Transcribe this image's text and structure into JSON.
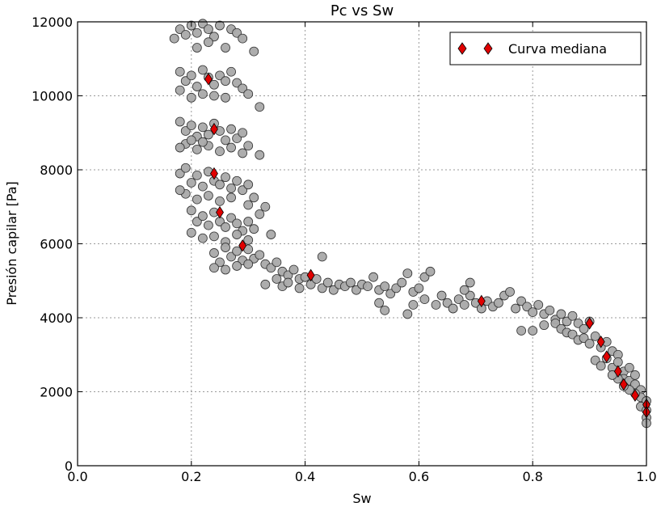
{
  "chart_data": {
    "type": "scatter",
    "title": "Pc vs Sw",
    "xlabel": "Sw",
    "ylabel": "Presión capilar [Pa]",
    "xlim": [
      0.0,
      1.0
    ],
    "ylim": [
      0,
      12000
    ],
    "xticks": [
      "0.0",
      "0.2",
      "0.4",
      "0.6",
      "0.8",
      "1.0"
    ],
    "yticks": [
      "0",
      "2000",
      "4000",
      "6000",
      "8000",
      "10000",
      "12000"
    ],
    "grid": true,
    "legend": {
      "placement": "top-right",
      "entries": [
        "Curva mediana"
      ]
    },
    "colors": {
      "scatter_fill": "#a9a9a9",
      "scatter_edge": "#333333",
      "median_fill": "#e00000",
      "median_edge": "#000000"
    },
    "series": [
      {
        "kind": "scatter",
        "points": [
          [
            0.17,
            11550
          ],
          [
            0.18,
            11800
          ],
          [
            0.19,
            11650
          ],
          [
            0.2,
            11900
          ],
          [
            0.21,
            11700
          ],
          [
            0.22,
            11950
          ],
          [
            0.23,
            11800
          ],
          [
            0.24,
            11600
          ],
          [
            0.25,
            11900
          ],
          [
            0.27,
            11800
          ],
          [
            0.28,
            11700
          ],
          [
            0.29,
            11550
          ],
          [
            0.31,
            11200
          ],
          [
            0.21,
            11300
          ],
          [
            0.23,
            11450
          ],
          [
            0.26,
            11300
          ],
          [
            0.18,
            10650
          ],
          [
            0.19,
            10400
          ],
          [
            0.2,
            10550
          ],
          [
            0.21,
            10250
          ],
          [
            0.22,
            10700
          ],
          [
            0.23,
            10500
          ],
          [
            0.24,
            10300
          ],
          [
            0.25,
            10550
          ],
          [
            0.26,
            10400
          ],
          [
            0.27,
            10650
          ],
          [
            0.28,
            10350
          ],
          [
            0.29,
            10200
          ],
          [
            0.3,
            10050
          ],
          [
            0.32,
            9700
          ],
          [
            0.2,
            9950
          ],
          [
            0.22,
            10050
          ],
          [
            0.24,
            10000
          ],
          [
            0.26,
            9950
          ],
          [
            0.18,
            10150
          ],
          [
            0.18,
            9300
          ],
          [
            0.19,
            9050
          ],
          [
            0.2,
            9200
          ],
          [
            0.21,
            8900
          ],
          [
            0.22,
            9150
          ],
          [
            0.23,
            8950
          ],
          [
            0.24,
            9250
          ],
          [
            0.25,
            9050
          ],
          [
            0.26,
            8800
          ],
          [
            0.27,
            9100
          ],
          [
            0.28,
            8850
          ],
          [
            0.29,
            9000
          ],
          [
            0.3,
            8650
          ],
          [
            0.32,
            8400
          ],
          [
            0.19,
            8700
          ],
          [
            0.21,
            8550
          ],
          [
            0.23,
            8650
          ],
          [
            0.25,
            8500
          ],
          [
            0.27,
            8600
          ],
          [
            0.29,
            8450
          ],
          [
            0.18,
            8600
          ],
          [
            0.2,
            8800
          ],
          [
            0.22,
            8750
          ],
          [
            0.18,
            7900
          ],
          [
            0.19,
            8050
          ],
          [
            0.2,
            7650
          ],
          [
            0.21,
            7850
          ],
          [
            0.22,
            7550
          ],
          [
            0.23,
            7950
          ],
          [
            0.24,
            7700
          ],
          [
            0.25,
            7600
          ],
          [
            0.26,
            7800
          ],
          [
            0.27,
            7500
          ],
          [
            0.28,
            7700
          ],
          [
            0.29,
            7450
          ],
          [
            0.3,
            7600
          ],
          [
            0.31,
            7250
          ],
          [
            0.33,
            7000
          ],
          [
            0.19,
            7350
          ],
          [
            0.21,
            7200
          ],
          [
            0.23,
            7300
          ],
          [
            0.25,
            7150
          ],
          [
            0.27,
            7250
          ],
          [
            0.3,
            7050
          ],
          [
            0.18,
            7450
          ],
          [
            0.2,
            6900
          ],
          [
            0.21,
            6600
          ],
          [
            0.22,
            6750
          ],
          [
            0.23,
            6500
          ],
          [
            0.24,
            6850
          ],
          [
            0.25,
            6600
          ],
          [
            0.26,
            6450
          ],
          [
            0.27,
            6700
          ],
          [
            0.28,
            6550
          ],
          [
            0.29,
            6350
          ],
          [
            0.3,
            6600
          ],
          [
            0.31,
            6400
          ],
          [
            0.32,
            6800
          ],
          [
            0.2,
            6300
          ],
          [
            0.22,
            6150
          ],
          [
            0.24,
            6200
          ],
          [
            0.26,
            6050
          ],
          [
            0.28,
            6250
          ],
          [
            0.3,
            6100
          ],
          [
            0.34,
            6250
          ],
          [
            0.24,
            5750
          ],
          [
            0.25,
            5500
          ],
          [
            0.26,
            5900
          ],
          [
            0.27,
            5650
          ],
          [
            0.28,
            5800
          ],
          [
            0.29,
            5550
          ],
          [
            0.3,
            5850
          ],
          [
            0.31,
            5600
          ],
          [
            0.32,
            5700
          ],
          [
            0.33,
            5450
          ],
          [
            0.24,
            5350
          ],
          [
            0.26,
            5300
          ],
          [
            0.28,
            5400
          ],
          [
            0.3,
            5450
          ],
          [
            0.34,
            5350
          ],
          [
            0.35,
            5500
          ],
          [
            0.36,
            5250
          ],
          [
            0.37,
            5150
          ],
          [
            0.38,
            5300
          ],
          [
            0.39,
            5050
          ],
          [
            0.33,
            4900
          ],
          [
            0.35,
            5050
          ],
          [
            0.36,
            4850
          ],
          [
            0.37,
            4950
          ],
          [
            0.39,
            4800
          ],
          [
            0.4,
            5100
          ],
          [
            0.41,
            4900
          ],
          [
            0.42,
            5050
          ],
          [
            0.43,
            4800
          ],
          [
            0.44,
            4950
          ],
          [
            0.43,
            5650
          ],
          [
            0.45,
            4750
          ],
          [
            0.46,
            4900
          ],
          [
            0.47,
            4850
          ],
          [
            0.48,
            4950
          ],
          [
            0.49,
            4750
          ],
          [
            0.5,
            4900
          ],
          [
            0.51,
            4850
          ],
          [
            0.52,
            5100
          ],
          [
            0.53,
            4750
          ],
          [
            0.54,
            4850
          ],
          [
            0.55,
            4650
          ],
          [
            0.56,
            4800
          ],
          [
            0.57,
            4950
          ],
          [
            0.58,
            5200
          ],
          [
            0.59,
            4700
          ],
          [
            0.6,
            4800
          ],
          [
            0.61,
            5100
          ],
          [
            0.62,
            5250
          ],
          [
            0.53,
            4400
          ],
          [
            0.54,
            4200
          ],
          [
            0.58,
            4100
          ],
          [
            0.59,
            4350
          ],
          [
            0.61,
            4500
          ],
          [
            0.63,
            4350
          ],
          [
            0.64,
            4600
          ],
          [
            0.65,
            4400
          ],
          [
            0.66,
            4250
          ],
          [
            0.67,
            4500
          ],
          [
            0.68,
            4350
          ],
          [
            0.69,
            4600
          ],
          [
            0.7,
            4400
          ],
          [
            0.71,
            4250
          ],
          [
            0.72,
            4450
          ],
          [
            0.73,
            4300
          ],
          [
            0.69,
            4950
          ],
          [
            0.68,
            4750
          ],
          [
            0.74,
            4400
          ],
          [
            0.75,
            4600
          ],
          [
            0.76,
            4700
          ],
          [
            0.77,
            4250
          ],
          [
            0.78,
            4450
          ],
          [
            0.79,
            4300
          ],
          [
            0.8,
            4150
          ],
          [
            0.81,
            4350
          ],
          [
            0.82,
            4100
          ],
          [
            0.83,
            4200
          ],
          [
            0.84,
            3950
          ],
          [
            0.85,
            4100
          ],
          [
            0.86,
            3900
          ],
          [
            0.87,
            4050
          ],
          [
            0.88,
            3850
          ],
          [
            0.89,
            3700
          ],
          [
            0.9,
            3900
          ],
          [
            0.78,
            3650
          ],
          [
            0.8,
            3650
          ],
          [
            0.82,
            3800
          ],
          [
            0.84,
            3850
          ],
          [
            0.85,
            3700
          ],
          [
            0.86,
            3600
          ],
          [
            0.87,
            3550
          ],
          [
            0.88,
            3400
          ],
          [
            0.89,
            3450
          ],
          [
            0.9,
            3300
          ],
          [
            0.91,
            3500
          ],
          [
            0.92,
            3200
          ],
          [
            0.93,
            3350
          ],
          [
            0.94,
            3100
          ],
          [
            0.95,
            3000
          ],
          [
            0.91,
            2850
          ],
          [
            0.92,
            2700
          ],
          [
            0.93,
            2900
          ],
          [
            0.94,
            2650
          ],
          [
            0.95,
            2800
          ],
          [
            0.96,
            2550
          ],
          [
            0.97,
            2650
          ],
          [
            0.96,
            2350
          ],
          [
            0.97,
            2300
          ],
          [
            0.98,
            2200
          ],
          [
            0.98,
            2450
          ],
          [
            0.99,
            2050
          ],
          [
            0.99,
            1850
          ],
          [
            1.0,
            1750
          ],
          [
            0.99,
            1600
          ],
          [
            1.0,
            1500
          ],
          [
            1.0,
            1300
          ],
          [
            1.0,
            1150
          ],
          [
            0.98,
            1950
          ],
          [
            0.97,
            2050
          ],
          [
            0.96,
            2150
          ],
          [
            0.95,
            2350
          ],
          [
            0.94,
            2450
          ]
        ]
      },
      {
        "name": "Curva mediana",
        "kind": "median",
        "points": [
          [
            0.23,
            10450
          ],
          [
            0.24,
            9100
          ],
          [
            0.24,
            7900
          ],
          [
            0.25,
            6850
          ],
          [
            0.29,
            5950
          ],
          [
            0.41,
            5150
          ],
          [
            0.71,
            4450
          ],
          [
            0.9,
            3850
          ],
          [
            0.92,
            3350
          ],
          [
            0.93,
            2950
          ],
          [
            0.95,
            2550
          ],
          [
            0.96,
            2200
          ],
          [
            0.98,
            1900
          ],
          [
            1.0,
            1650
          ],
          [
            1.0,
            1450
          ]
        ]
      }
    ]
  }
}
